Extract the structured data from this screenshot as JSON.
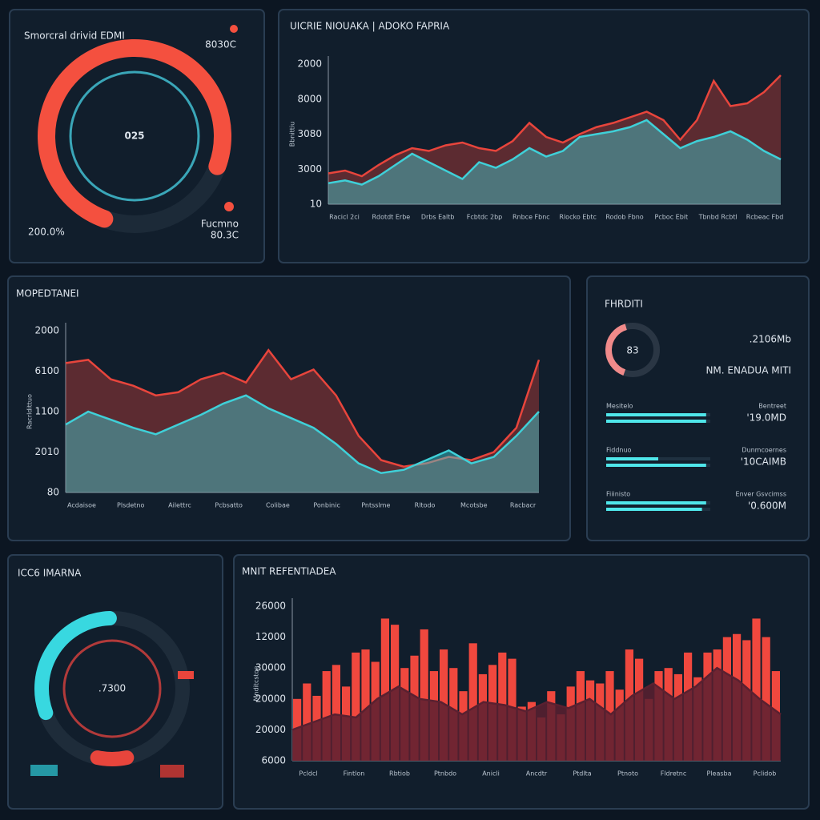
{
  "gauge_panel": {
    "label": "Smorcral drivid EDMI",
    "top_value": "8030C",
    "center": "025",
    "left_value": "200.0%",
    "right_label": "Fucmno",
    "right_value": "80.3C",
    "percent": 75
  },
  "area_chart": {
    "type": "area",
    "title": "UICRIE NIOUAKA | ADOKO FAPRIA",
    "y_axis_title": "Bbnittiu",
    "y_labels": [
      "2000",
      "8000",
      "3080",
      "3000",
      "10"
    ],
    "ylim": [
      0,
      100
    ],
    "x_labels": [
      "Racicl 2ci",
      "Rdotdt Erbe",
      "Drbs Ealtb",
      "Fcbtdc 2bp",
      "Rnbce Fbnc",
      "Rlocko Ebtc",
      "Rodob Fbno",
      "Pcboc Ebit",
      "Tbnbd Rcbtl",
      "Rcbeac Fbd"
    ],
    "series": [
      {
        "color": "#e8453c",
        "values": [
          22,
          24,
          20,
          28,
          35,
          40,
          38,
          42,
          44,
          40,
          38,
          45,
          58,
          48,
          44,
          50,
          55,
          58,
          62,
          66,
          60,
          46,
          60,
          88,
          70,
          72,
          80,
          92
        ]
      },
      {
        "color": "#3fd0d8",
        "values": [
          15,
          17,
          14,
          20,
          28,
          36,
          30,
          24,
          18,
          30,
          26,
          32,
          40,
          34,
          38,
          48,
          50,
          52,
          55,
          60,
          50,
          40,
          45,
          48,
          52,
          46,
          38,
          32
        ]
      }
    ]
  },
  "wave_chart": {
    "type": "area",
    "title": "MOPEDTANEI",
    "y_axis_title": "Racrldittuo",
    "y_labels": [
      "2000",
      "6100",
      "1100",
      "2010",
      "80"
    ],
    "ylim": [
      0,
      100
    ],
    "x_labels": [
      "Acdaisoe",
      "Plsdetno",
      "Ailettrc",
      "Pcbsatto",
      "Colibae",
      "Ponbinic",
      "Pntsslme",
      "Rltodo",
      "Mcotsbe",
      "Racbacr"
    ],
    "series": [
      {
        "color": "#e8453c",
        "values": [
          80,
          82,
          70,
          66,
          60,
          62,
          70,
          74,
          68,
          88,
          70,
          76,
          60,
          35,
          20,
          16,
          18,
          22,
          20,
          25,
          40,
          82
        ]
      },
      {
        "color": "#3fd0d8",
        "values": [
          42,
          50,
          45,
          40,
          36,
          42,
          48,
          55,
          60,
          52,
          46,
          40,
          30,
          18,
          12,
          14,
          20,
          26,
          18,
          22,
          35,
          50
        ]
      }
    ]
  },
  "stats_panel": {
    "title": "FHRDITI",
    "donut_label": "83",
    "donut_percent": 40,
    "big_value": ".2106Mb",
    "subtitle": "NM. ENADUA MITI",
    "rows": [
      {
        "label": "Mesitelo",
        "note": "Bentreet",
        "value": "'19.0MD",
        "bars": [
          96,
          96
        ]
      },
      {
        "label": "Fiddnuo",
        "note": "Dunmcoernes",
        "value": "'10CAIMB",
        "bars": [
          50,
          96
        ]
      },
      {
        "label": "Fiiinisto",
        "note": "Enver Gsvcimss",
        "value": "'0.600M",
        "bars": [
          96,
          92
        ]
      }
    ]
  },
  "gauge_panel_2": {
    "label": "ICC6 IMARNA",
    "center": ".7300",
    "percent": 30
  },
  "bar_chart": {
    "type": "bar",
    "title": "MNIT REFENTIADEA",
    "y_axis_title": "Mnditcstoe",
    "y_labels": [
      "26000",
      "12000",
      "30000",
      "20000",
      "20000",
      "6000"
    ],
    "ylim": [
      0,
      100
    ],
    "x_labels": [
      "Pcldcl",
      "Fintlon",
      "Rbtiob",
      "Ptnbdo",
      "Anicli",
      "Ancdtr",
      "Ptdlta",
      "Ptnoto",
      "Fldretnc",
      "Pleasba",
      "Pclidob"
    ],
    "color": "#f0483e",
    "values": [
      40,
      50,
      42,
      58,
      62,
      48,
      70,
      72,
      64,
      92,
      88,
      60,
      68,
      85,
      58,
      72,
      60,
      45,
      76,
      56,
      62,
      70,
      66,
      35,
      38,
      28,
      45,
      30,
      48,
      58,
      52,
      50,
      58,
      46,
      72,
      66,
      40,
      58,
      60,
      56,
      70,
      54,
      70,
      72,
      80,
      82,
      78,
      92,
      80,
      58
    ],
    "area": {
      "color": "#5a2030",
      "values": [
        20,
        25,
        30,
        28,
        40,
        48,
        40,
        38,
        30,
        38,
        36,
        32,
        38,
        34,
        40,
        30,
        42,
        50,
        40,
        48,
        60,
        52,
        40,
        30
      ]
    }
  }
}
